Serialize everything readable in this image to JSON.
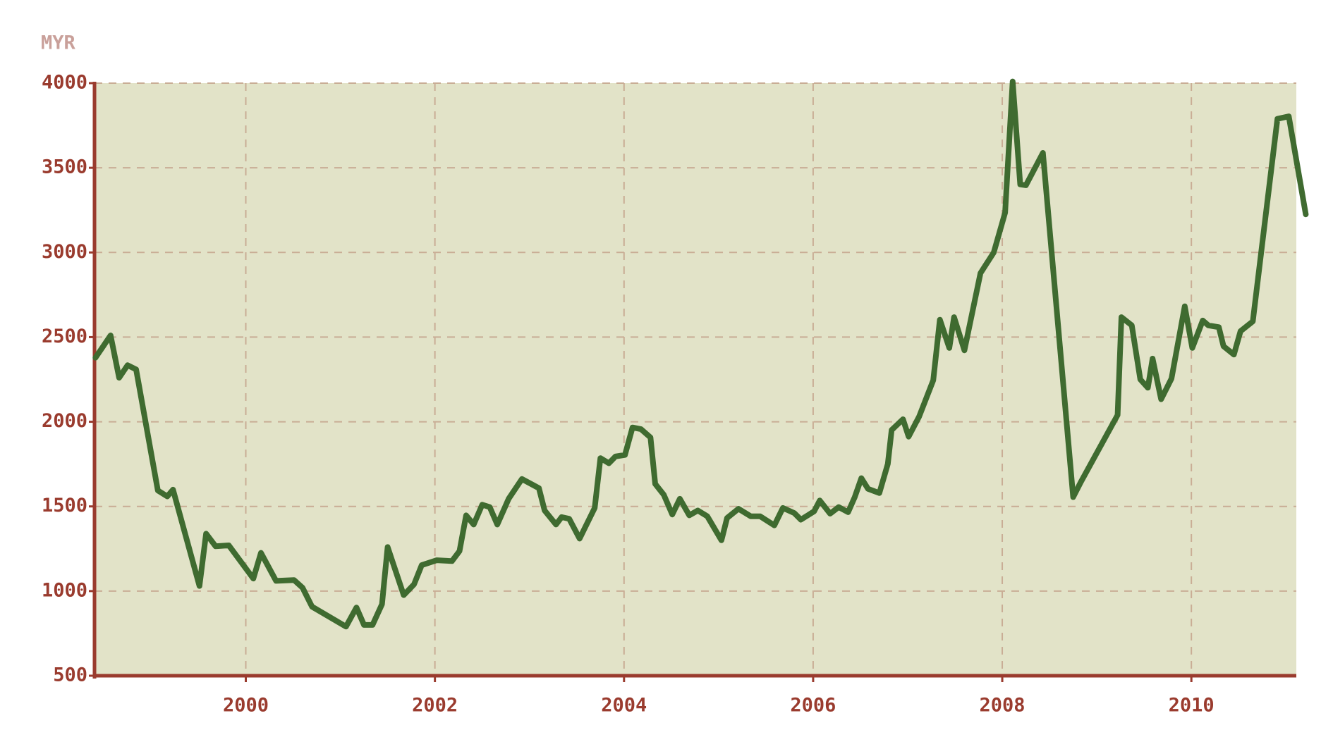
{
  "chart_data": {
    "type": "line",
    "y_label": "MYR",
    "color": "#3f6b30",
    "grid": true,
    "x": [
      1998.41,
      1998.57,
      1998.66,
      1998.75,
      1998.84,
      1999.07,
      1999.17,
      1999.23,
      1999.51,
      1999.58,
      1999.68,
      1999.82,
      2000.08,
      2000.16,
      2000.32,
      2000.51,
      2000.6,
      2000.7,
      2001.06,
      2001.17,
      2001.25,
      2001.34,
      2001.44,
      2001.5,
      2001.67,
      2001.78,
      2001.86,
      2002.02,
      2002.18,
      2002.26,
      2002.33,
      2002.41,
      2002.5,
      2002.58,
      2002.66,
      2002.78,
      2002.92,
      2003.1,
      2003.16,
      2003.28,
      2003.34,
      2003.42,
      2003.53,
      2003.69,
      2003.75,
      2003.84,
      2003.91,
      2004.01,
      2004.09,
      2004.18,
      2004.28,
      2004.33,
      2004.42,
      2004.51,
      2004.59,
      2004.69,
      2004.78,
      2004.88,
      2005.03,
      2005.09,
      2005.21,
      2005.34,
      2005.44,
      2005.59,
      2005.68,
      2005.8,
      2005.87,
      2006.01,
      2006.07,
      2006.18,
      2006.27,
      2006.37,
      2006.44,
      2006.51,
      2006.58,
      2006.7,
      2006.79,
      2006.83,
      2006.95,
      2007.01,
      2007.12,
      2007.27,
      2007.34,
      2007.44,
      2007.49,
      2007.6,
      2007.77,
      2007.91,
      2008.03,
      2008.11,
      2008.19,
      2008.25,
      2008.43,
      2008.75,
      2008.83,
      2009.22,
      2009.26,
      2009.37,
      2009.46,
      2009.54,
      2009.59,
      2009.68,
      2009.79,
      2009.93,
      2010.01,
      2010.12,
      2010.18,
      2010.29,
      2010.34,
      2010.45,
      2010.52,
      2010.65,
      2010.91,
      2011.03,
      2011.21
    ],
    "values": [
      2378,
      2510,
      2260,
      2334,
      2309,
      1594,
      1559,
      1599,
      1030,
      1339,
      1265,
      1270,
      1074,
      1226,
      1060,
      1065,
      1020,
      908,
      790,
      903,
      800,
      800,
      922,
      1260,
      976,
      1040,
      1153,
      1182,
      1177,
      1236,
      1447,
      1393,
      1510,
      1496,
      1393,
      1545,
      1662,
      1608,
      1476,
      1393,
      1437,
      1427,
      1310,
      1491,
      1785,
      1755,
      1795,
      1804,
      1966,
      1956,
      1907,
      1633,
      1569,
      1452,
      1545,
      1447,
      1476,
      1442,
      1300,
      1432,
      1486,
      1442,
      1442,
      1388,
      1491,
      1461,
      1422,
      1471,
      1535,
      1457,
      1496,
      1466,
      1555,
      1667,
      1604,
      1579,
      1751,
      1951,
      2015,
      1912,
      2030,
      2245,
      2603,
      2436,
      2618,
      2422,
      2878,
      3000,
      3235,
      4010,
      3402,
      3397,
      3588,
      1555,
      1643,
      2040,
      2618,
      2569,
      2250,
      2201,
      2373,
      2133,
      2255,
      2682,
      2436,
      2598,
      2569,
      2559,
      2446,
      2397,
      2535,
      2593,
      3789,
      3804,
      3225
    ],
    "xlim": [
      1998.4,
      2011.11
    ],
    "xticks": [
      2000,
      2002,
      2004,
      2006,
      2008,
      2010
    ],
    "ylim": [
      500,
      4000
    ],
    "yticks": [
      500,
      1000,
      1500,
      2000,
      2500,
      3000,
      3500,
      4000
    ]
  }
}
